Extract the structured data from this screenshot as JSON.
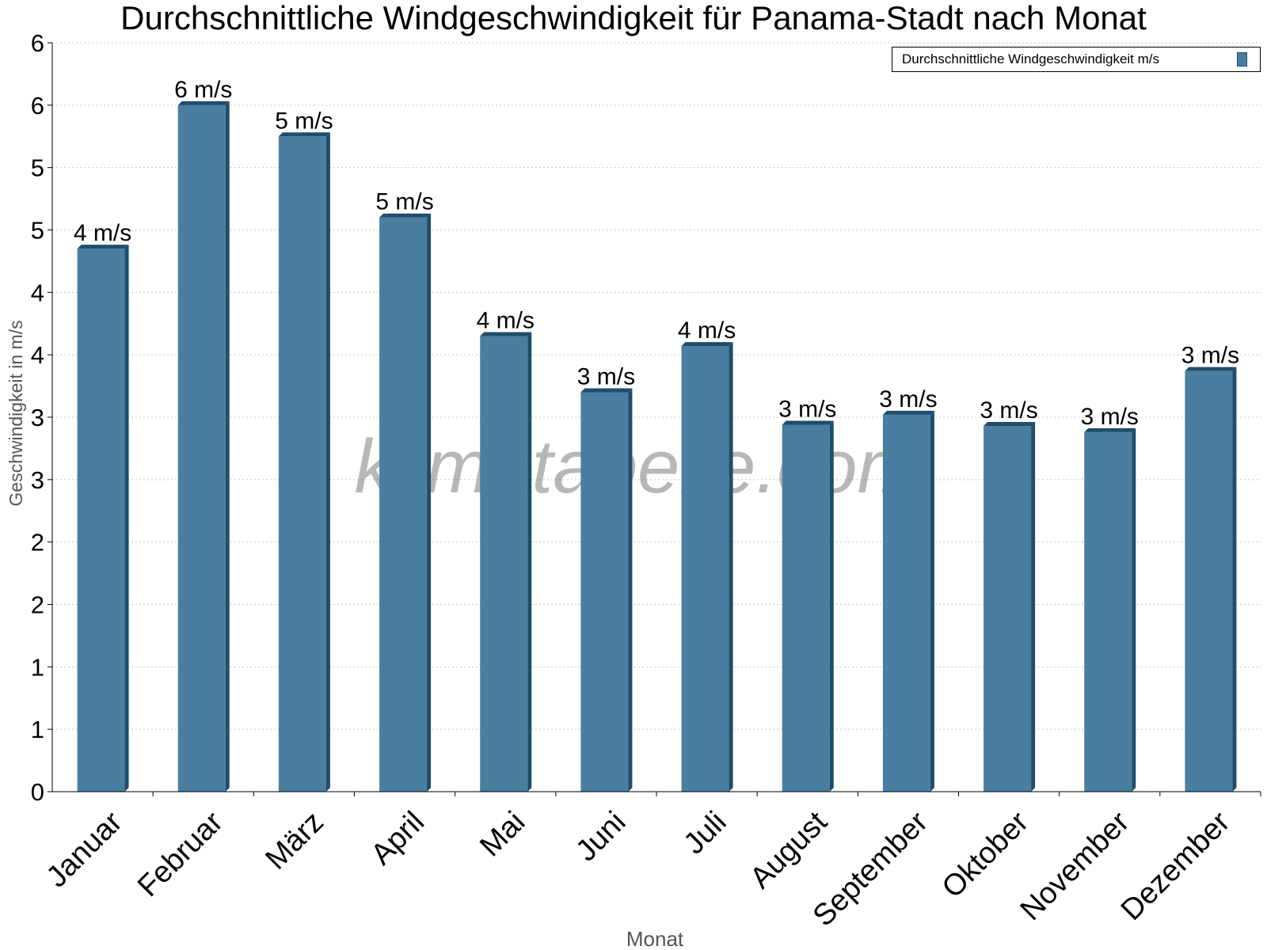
{
  "chart_data": {
    "type": "bar",
    "title": "Durchschnittliche Windgeschwindigkeit für Panama-Stadt nach Monat",
    "xlabel": "Monat",
    "ylabel": "Geschwindigkeit in m/s",
    "ylim": [
      0,
      6
    ],
    "yticks": [
      "0",
      "1",
      "1",
      "2",
      "2",
      "3",
      "3",
      "4",
      "4",
      "5",
      "5",
      "6",
      "6"
    ],
    "grid": true,
    "legend_position": "top-right",
    "categories": [
      "Januar",
      "Februar",
      "März",
      "April",
      "Mai",
      "Juni",
      "Juli",
      "August",
      "September",
      "Oktober",
      "November",
      "Dezember"
    ],
    "series": [
      {
        "name": "Durchschnittliche Windgeschwindigkeit m/s",
        "values": [
          4.35,
          5.5,
          5.25,
          4.6,
          3.65,
          3.2,
          3.57,
          2.94,
          3.02,
          2.93,
          2.88,
          3.37
        ],
        "labels": [
          "4 m/s",
          "6 m/s",
          "5 m/s",
          "5 m/s",
          "4 m/s",
          "3 m/s",
          "4 m/s",
          "3 m/s",
          "3 m/s",
          "3 m/s",
          "3 m/s",
          "3 m/s"
        ]
      }
    ],
    "watermark": "klimatabelle.com",
    "colors": {
      "bar": "#4a7ea0",
      "bar_side": "#1f4d6b",
      "grid": "#c8c8c8"
    }
  }
}
